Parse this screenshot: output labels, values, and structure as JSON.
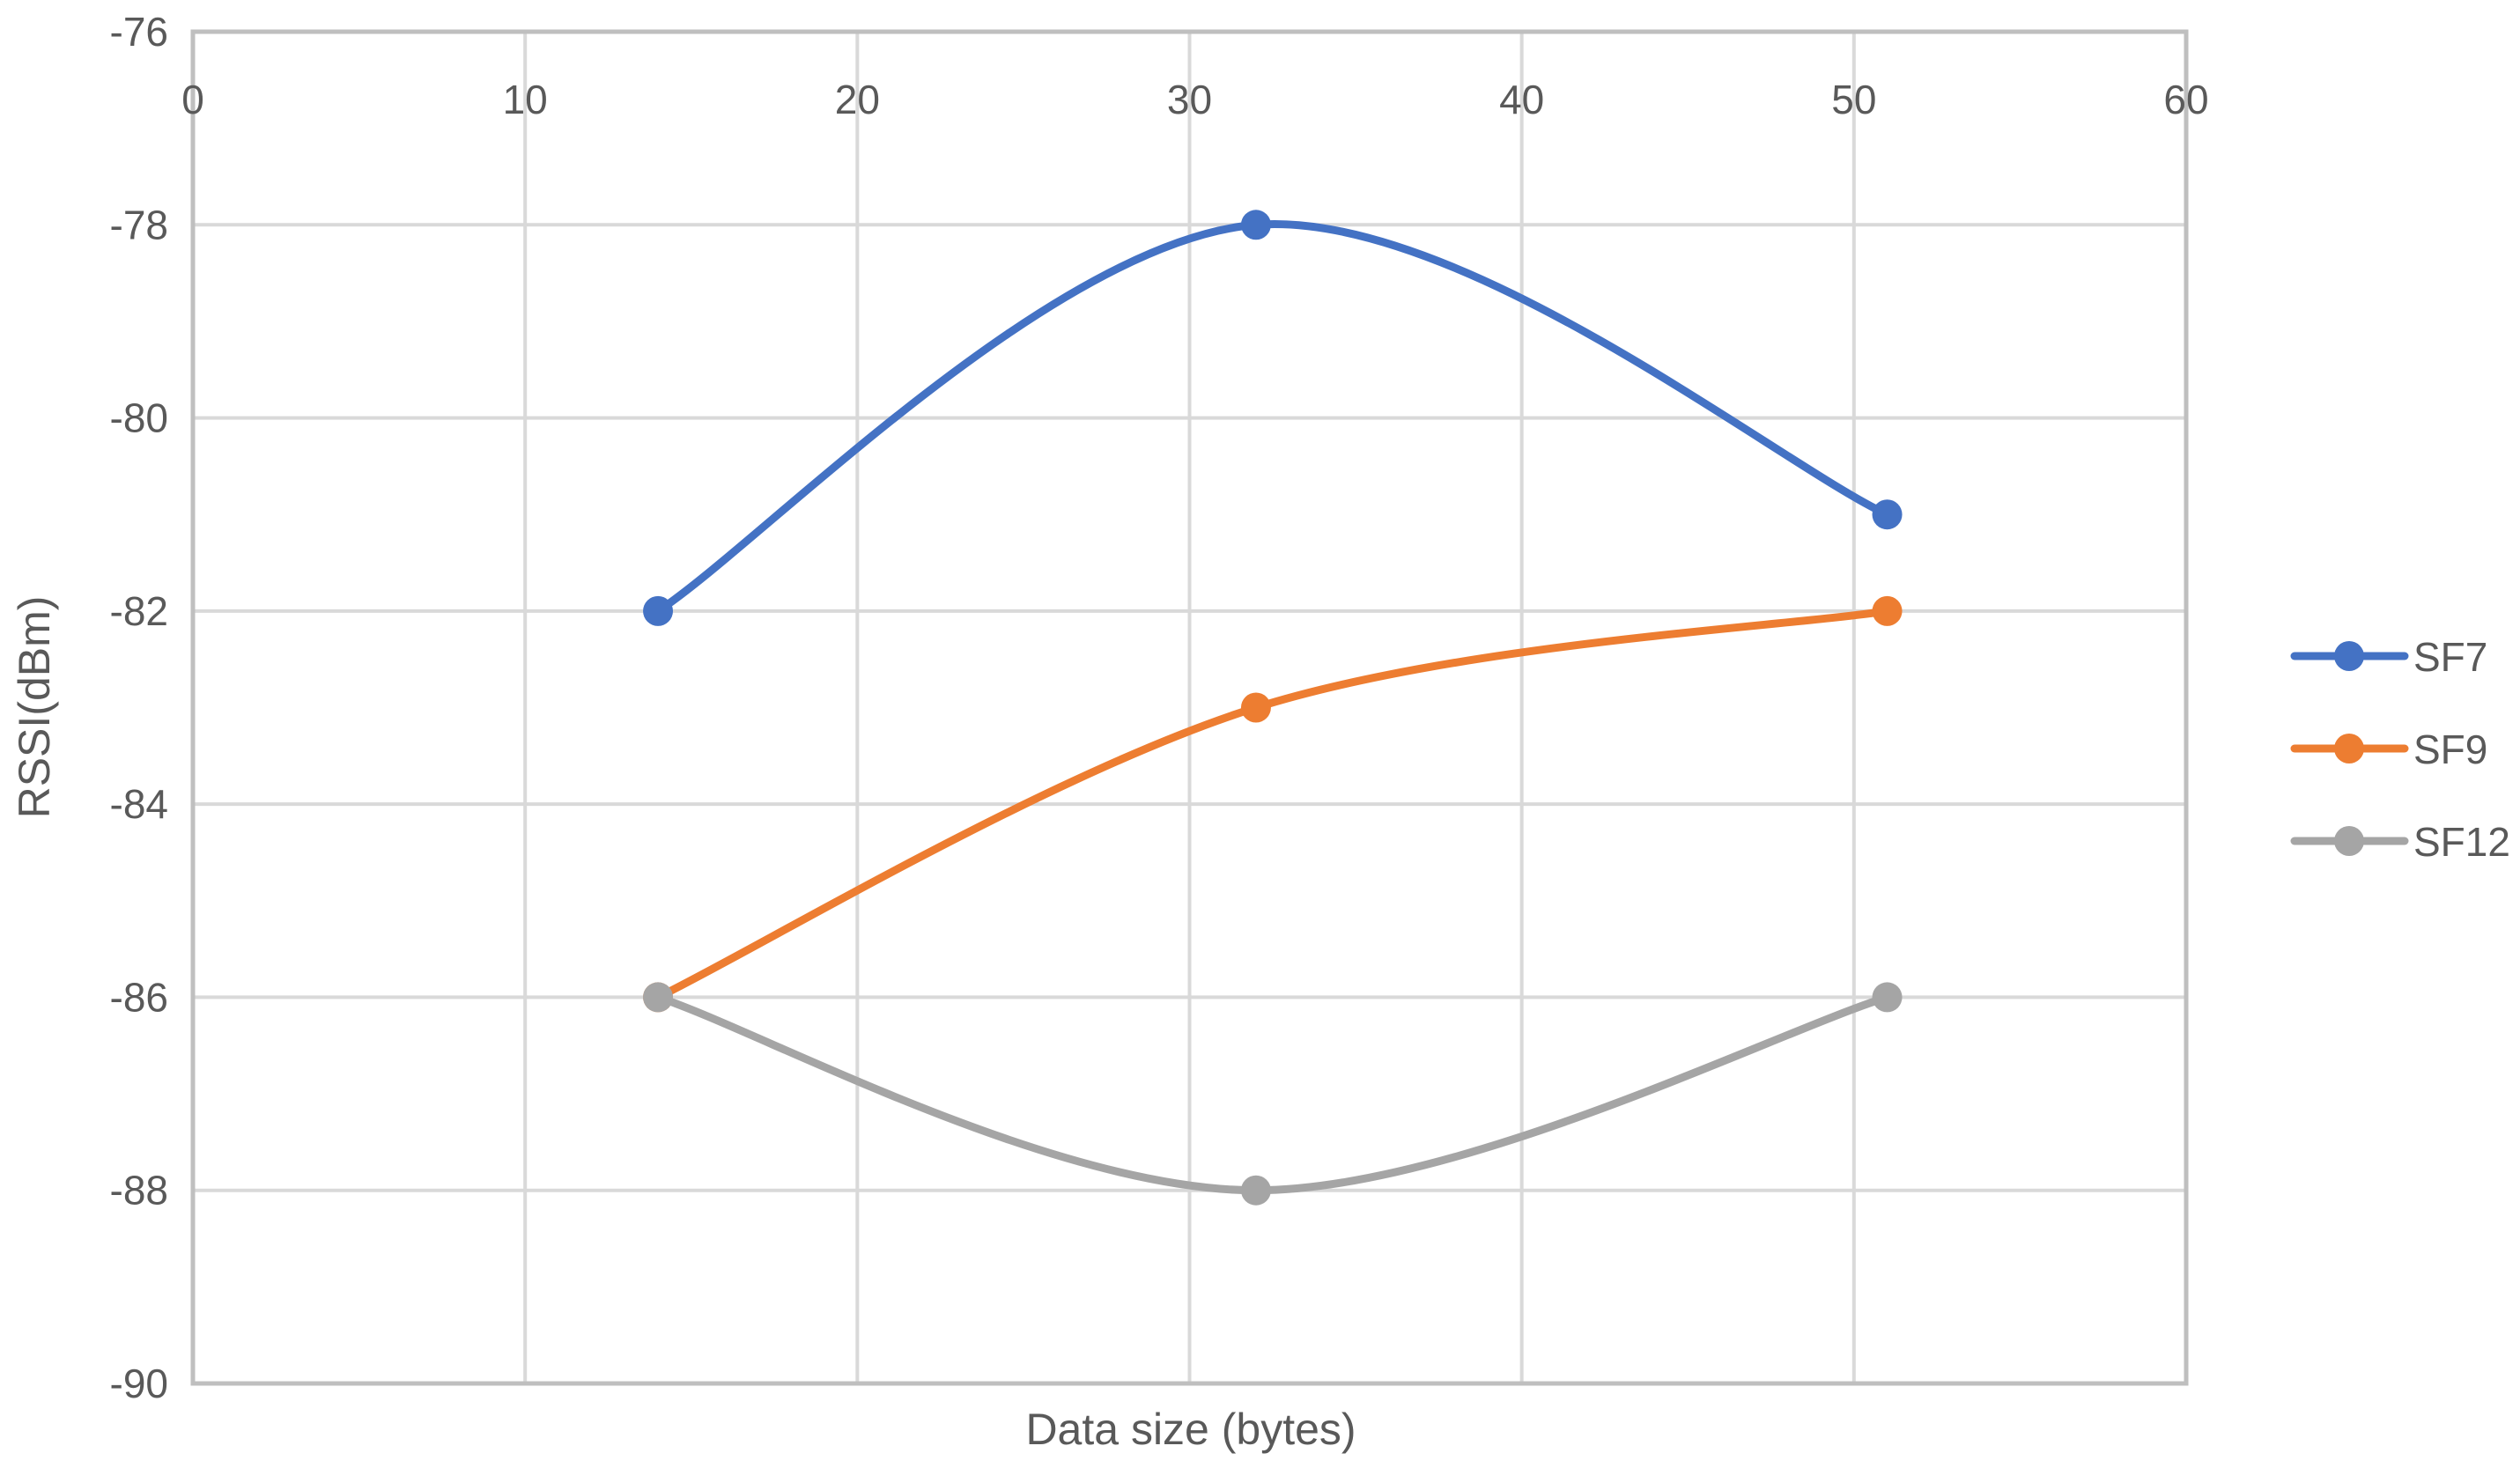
{
  "chart_data": {
    "type": "line",
    "subtype": "scatter-smooth-lines-markers",
    "title": "",
    "xlabel": "Data size (bytes)",
    "ylabel": "RSSI(dBm)",
    "xlim": [
      0,
      60
    ],
    "ylim": [
      -90,
      -76
    ],
    "x_ticks": [
      0,
      10,
      20,
      30,
      40,
      50,
      60
    ],
    "y_ticks": [
      -76,
      -78,
      -80,
      -82,
      -84,
      -86,
      -88,
      -90
    ],
    "x_axis_position": "top (crosses at y=-76)",
    "grid": true,
    "legend_position": "right",
    "x": [
      14,
      32,
      51
    ],
    "series": [
      {
        "name": "SF7",
        "color": "#4472C4",
        "values": [
          -82,
          -78,
          -81
        ]
      },
      {
        "name": "SF9",
        "color": "#ED7D31",
        "values": [
          -86,
          -83,
          -82
        ]
      },
      {
        "name": "SF12",
        "color": "#A5A5A5",
        "values": [
          -86,
          -88,
          -86
        ]
      }
    ]
  },
  "labels": {
    "x_axis_title": "Data size (bytes)",
    "y_axis_title": "RSSI(dBm)"
  },
  "legend": [
    {
      "label": "SF7",
      "color": "#4472C4"
    },
    {
      "label": "SF9",
      "color": "#ED7D31"
    },
    {
      "label": "SF12",
      "color": "#A5A5A5"
    }
  ]
}
